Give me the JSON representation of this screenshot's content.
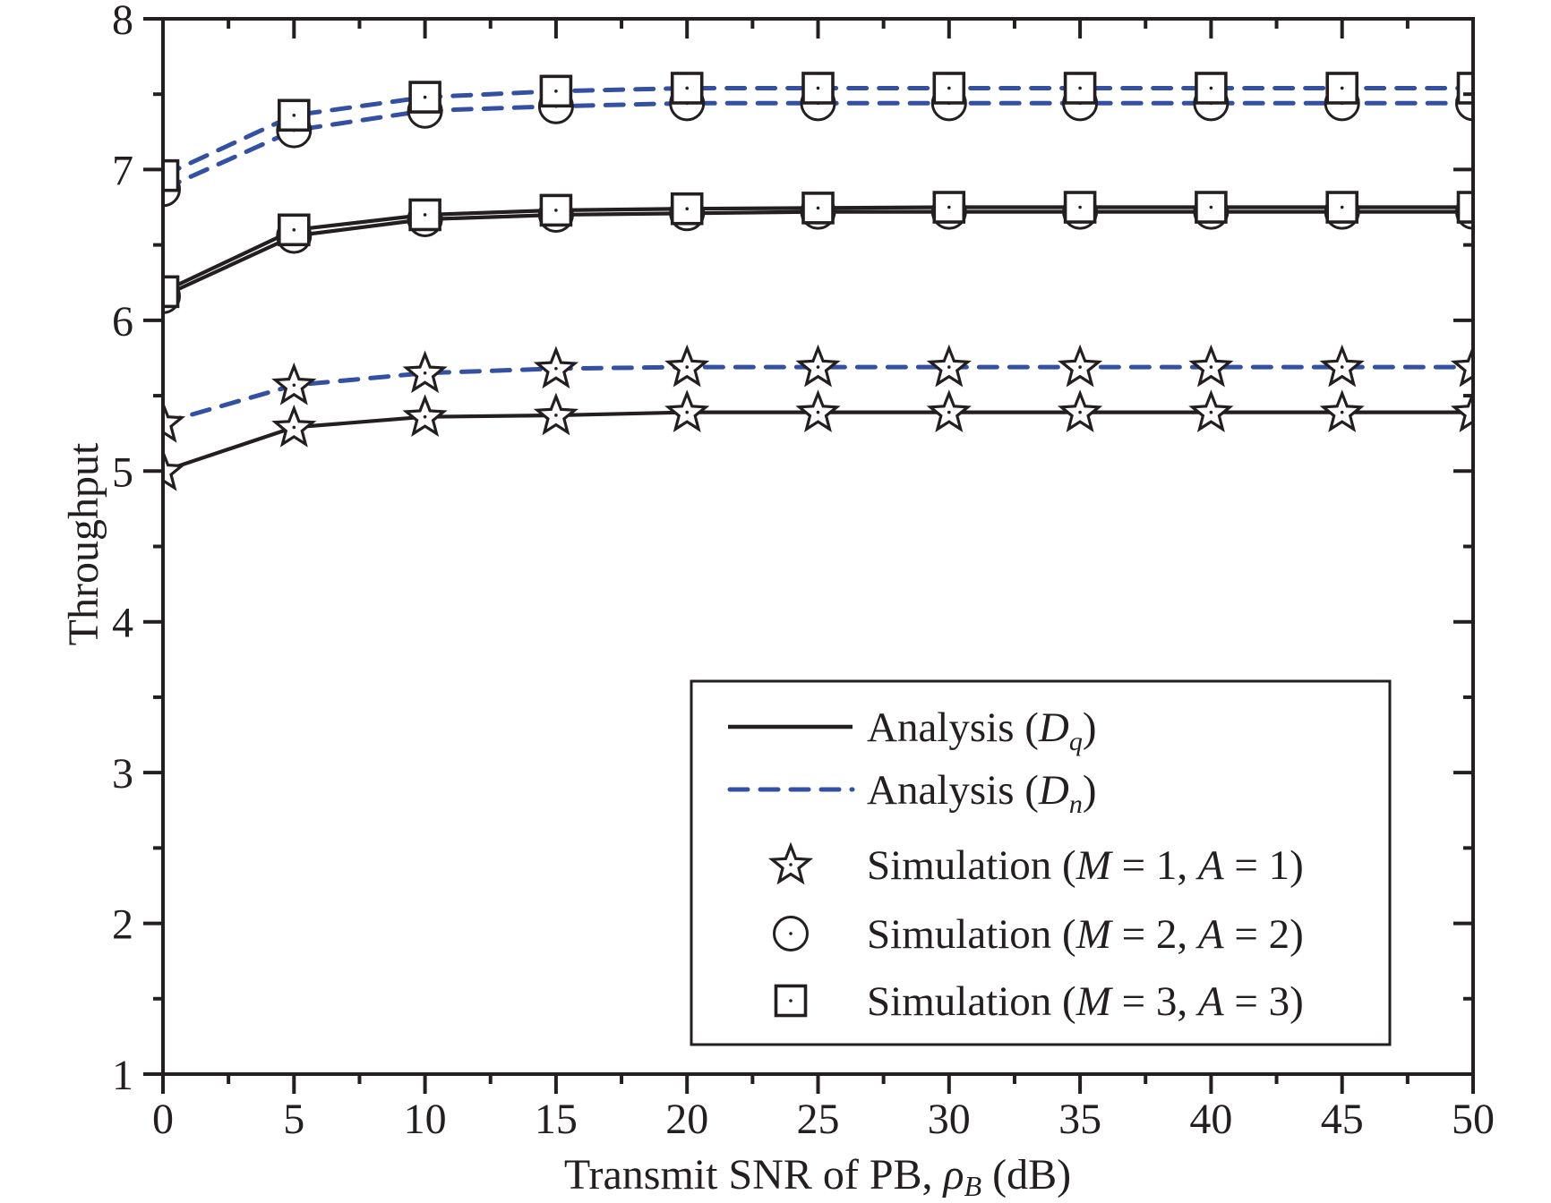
{
  "chart_data": {
    "type": "line",
    "title": "",
    "xlabel": {
      "main": "Transmit SNR of PB, ",
      "symbol": "ρ",
      "subscript": "B",
      "unit": " (dB)"
    },
    "ylabel": "Throughput",
    "xlim": [
      0,
      50
    ],
    "ylim": [
      1,
      8
    ],
    "xticks": [
      0,
      5,
      10,
      15,
      20,
      25,
      30,
      35,
      40,
      45,
      50
    ],
    "yticks": [
      1,
      2,
      3,
      4,
      5,
      6,
      7,
      8
    ],
    "x": [
      0,
      5,
      10,
      15,
      20,
      25,
      30,
      35,
      40,
      45,
      50
    ],
    "grid": false,
    "colors": {
      "analysis_dq": "#231f20",
      "analysis_dn": "#3450a3",
      "axis": "#231f20"
    },
    "series": [
      {
        "name": "Analysis (D_q), M = 3, A = 3",
        "line": "solid",
        "marker": "square",
        "values": [
          6.19,
          6.6,
          6.7,
          6.73,
          6.74,
          6.745,
          6.75,
          6.75,
          6.75,
          6.75,
          6.75
        ]
      },
      {
        "name": "Analysis (D_q), M = 2, A = 2",
        "line": "solid",
        "marker": "circle",
        "values": [
          6.16,
          6.56,
          6.67,
          6.7,
          6.71,
          6.72,
          6.72,
          6.72,
          6.72,
          6.72,
          6.72
        ]
      },
      {
        "name": "Analysis (D_q), M = 1, A = 1",
        "line": "solid",
        "marker": "star",
        "values": [
          5.0,
          5.29,
          5.36,
          5.37,
          5.39,
          5.39,
          5.39,
          5.39,
          5.39,
          5.39,
          5.39
        ]
      },
      {
        "name": "Analysis (D_n), M = 3, A = 3",
        "line": "dashed",
        "marker": "square",
        "values": [
          6.96,
          7.36,
          7.48,
          7.52,
          7.54,
          7.54,
          7.54,
          7.54,
          7.54,
          7.54,
          7.54
        ]
      },
      {
        "name": "Analysis (D_n), M = 2, A = 2",
        "line": "dashed",
        "marker": "circle",
        "values": [
          6.87,
          7.26,
          7.39,
          7.42,
          7.44,
          7.44,
          7.44,
          7.44,
          7.44,
          7.44,
          7.44
        ]
      },
      {
        "name": "Analysis (D_n), M = 1, A = 1",
        "line": "dashed",
        "marker": "star",
        "values": [
          5.32,
          5.57,
          5.65,
          5.68,
          5.69,
          5.69,
          5.69,
          5.69,
          5.69,
          5.69,
          5.69
        ]
      }
    ],
    "legend": {
      "position": "lower-right",
      "entries": [
        {
          "kind": "line-solid",
          "pre": "Analysis (",
          "var": "D",
          "sub": "q",
          "post": ")"
        },
        {
          "kind": "line-dashed",
          "pre": "Analysis (",
          "var": "D",
          "sub": "n",
          "post": ")"
        },
        {
          "kind": "star",
          "pre": "Simulation (",
          "m": "M",
          "mval": " = 1, ",
          "a": "A",
          "aval": " = 1)"
        },
        {
          "kind": "circle",
          "pre": "Simulation (",
          "m": "M",
          "mval": " = 2, ",
          "a": "A",
          "aval": " = 2)"
        },
        {
          "kind": "square",
          "pre": "Simulation (",
          "m": "M",
          "mval": " = 3, ",
          "a": "A",
          "aval": " = 3)"
        }
      ]
    }
  }
}
